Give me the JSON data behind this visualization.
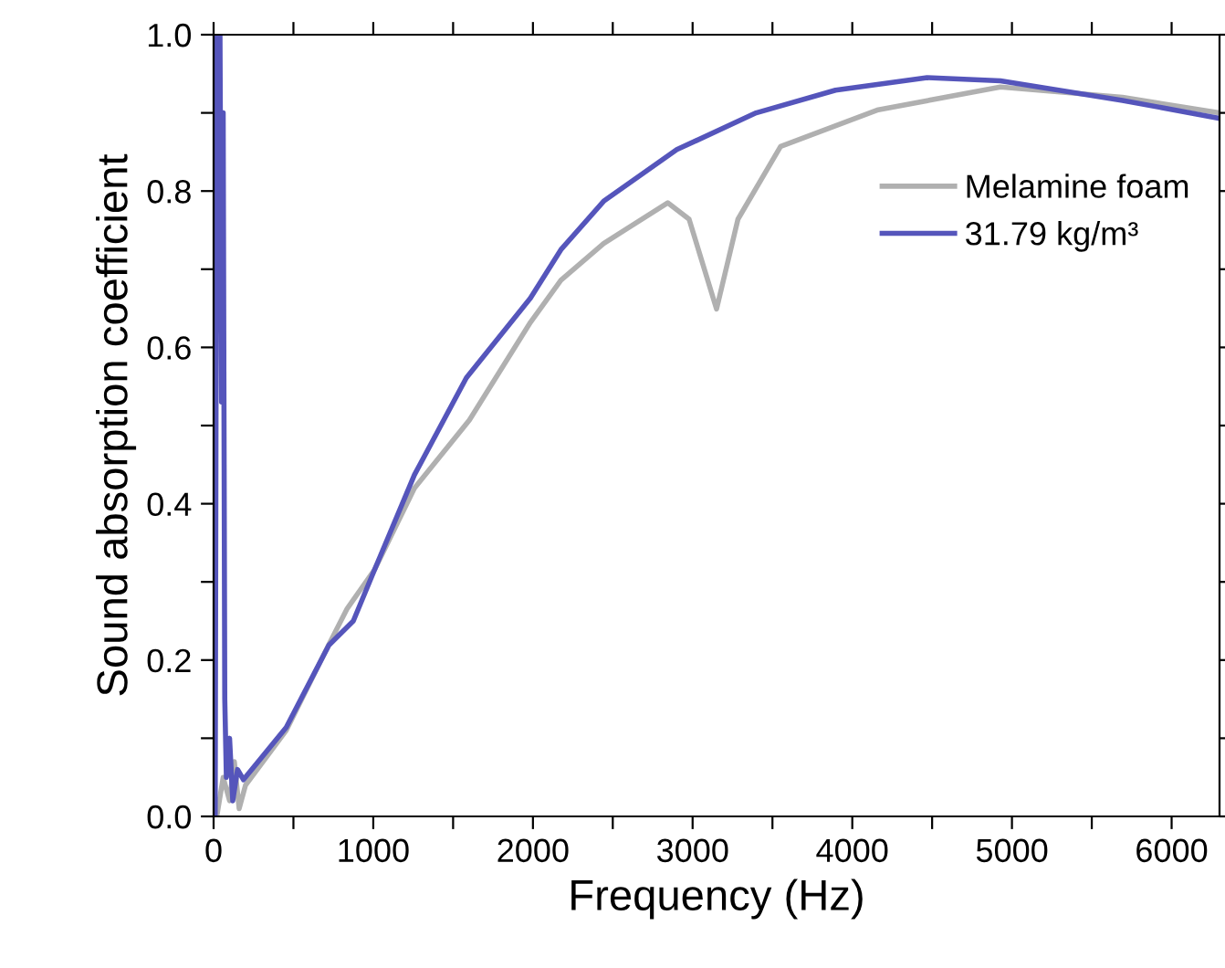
{
  "chart_data": {
    "type": "line",
    "xlabel": "Frequency (Hz)",
    "ylabel": "Sound absorption coefficient",
    "xlim": [
      0,
      6300
    ],
    "ylim": [
      0,
      1.0
    ],
    "xticks": [
      0,
      {
        "value": 500,
        "label": null
      },
      1000,
      {
        "value": 1500,
        "label": null
      },
      2000,
      {
        "value": 2500,
        "label": null
      },
      3000,
      {
        "value": 3500,
        "label": null
      },
      4000,
      {
        "value": 4500,
        "label": null
      },
      5000,
      {
        "value": 5500,
        "label": null
      },
      6000
    ],
    "yticks": [
      {
        "value": 0,
        "label": "0.0"
      },
      {
        "value": 0.1,
        "label": null
      },
      0.2,
      {
        "value": 0.3,
        "label": null
      },
      0.4,
      {
        "value": 0.5,
        "label": null
      },
      0.6,
      {
        "value": 0.7,
        "label": null
      },
      0.8,
      {
        "value": 0.9,
        "label": null
      },
      {
        "value": 1.0,
        "label": "1.0"
      }
    ],
    "legend": "top right",
    "grid": false,
    "marker": "none",
    "line_style": "solid",
    "series": [
      {
        "name": "Melamine foam",
        "color": "#b0b0b0",
        "x": [
          20,
          60,
          100,
          130,
          160,
          200,
          455,
          722,
          837,
          1009,
          1258,
          1602,
          1984,
          2175,
          2443,
          2844,
          2978,
          3150,
          3284,
          3551,
          4163,
          4928,
          5692,
          6300
        ],
        "values": [
          0.0,
          0.05,
          0.02,
          0.07,
          0.01,
          0.04,
          0.11,
          0.22,
          0.266,
          0.316,
          0.42,
          0.507,
          0.632,
          0.686,
          0.733,
          0.785,
          0.764,
          0.649,
          0.764,
          0.857,
          0.904,
          0.933,
          0.92,
          0.9
        ]
      },
      {
        "name": "31.79 kg/m³",
        "color": "#5555bb",
        "x": [
          10,
          20,
          40,
          50,
          60,
          70,
          80,
          100,
          120,
          150,
          187,
          455,
          722,
          875,
          1009,
          1258,
          1583,
          1984,
          2175,
          2443,
          2901,
          3398,
          3895,
          4469,
          4928,
          5692,
          6300
        ],
        "values": [
          0.0,
          1.0,
          1.0,
          0.53,
          0.9,
          0.15,
          0.05,
          0.1,
          0.02,
          0.06,
          0.047,
          0.114,
          0.219,
          0.25,
          0.316,
          0.437,
          0.561,
          0.663,
          0.725,
          0.787,
          0.853,
          0.9,
          0.929,
          0.945,
          0.941,
          0.916,
          0.893
        ]
      }
    ]
  }
}
